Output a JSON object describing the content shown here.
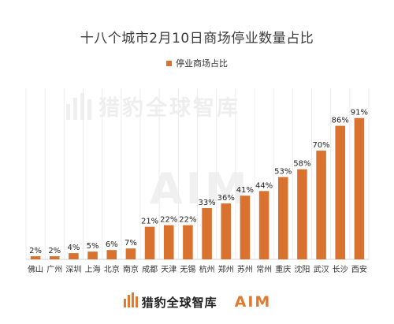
{
  "chart_data": {
    "type": "bar",
    "title": "十八个城市2月10日商场停业数量占比",
    "series": [
      {
        "name": "停业商场占比",
        "color": "#d9722f",
        "values": [
          2,
          2,
          4,
          5,
          6,
          7,
          21,
          22,
          22,
          33,
          36,
          41,
          44,
          53,
          58,
          70,
          86,
          91
        ]
      }
    ],
    "categories": [
      "佛山",
      "广州",
      "深圳",
      "上海",
      "北京",
      "南京",
      "成都",
      "天津",
      "无锡",
      "杭州",
      "郑州",
      "苏州",
      "常州",
      "重庆",
      "沈阳",
      "武汉",
      "长沙",
      "西安"
    ],
    "value_labels": [
      "2%",
      "2%",
      "4%",
      "5%",
      "6%",
      "7%",
      "21%",
      "22%",
      "22%",
      "33%",
      "36%",
      "41%",
      "44%",
      "53%",
      "58%",
      "70%",
      "86%",
      "91%"
    ],
    "ylim": [
      0,
      100
    ],
    "grid": "vertical",
    "legend_position": "top-center",
    "xlabel": "",
    "ylabel": ""
  },
  "watermark": {
    "text": "猎豹全球智库",
    "logo_text": "AIM"
  },
  "footer": {
    "brand": "猎豹全球智库",
    "logo_text": "AIM",
    "icon": "bar-logo-icon"
  }
}
